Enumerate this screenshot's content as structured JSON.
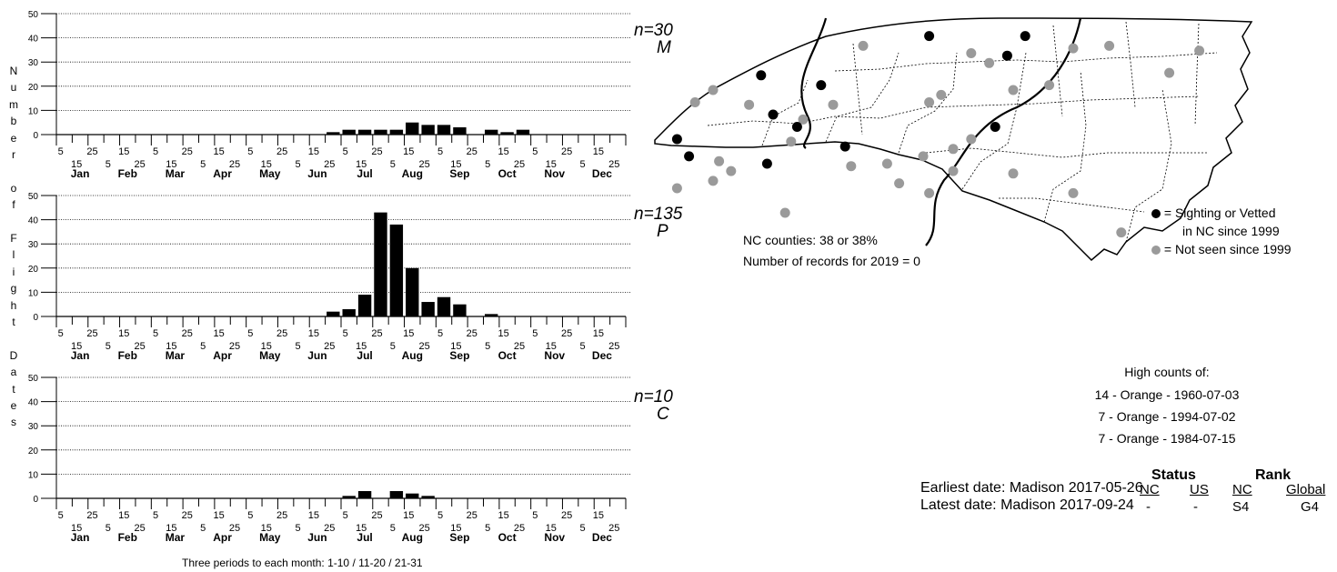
{
  "charts": [
    {
      "code": "M",
      "n_label": "n=30",
      "bar_values": [
        0,
        0,
        0,
        0,
        0,
        0,
        0,
        0,
        0,
        0,
        0,
        0,
        0,
        0,
        0,
        0,
        0,
        1,
        2,
        2,
        2,
        2,
        5,
        4,
        4,
        3,
        0,
        2,
        1,
        2,
        0,
        0,
        0,
        0,
        0,
        0
      ]
    },
    {
      "code": "P",
      "n_label": "n=135",
      "bar_values": [
        0,
        0,
        0,
        0,
        0,
        0,
        0,
        0,
        0,
        0,
        0,
        0,
        0,
        0,
        0,
        0,
        0,
        2,
        3,
        9,
        43,
        38,
        20,
        6,
        8,
        5,
        0,
        1,
        0,
        0,
        0,
        0,
        0,
        0,
        0,
        0
      ]
    },
    {
      "code": "C",
      "n_label": "n=10",
      "bar_values": [
        0,
        0,
        0,
        0,
        0,
        0,
        0,
        0,
        0,
        0,
        0,
        0,
        0,
        0,
        0,
        0,
        0,
        0,
        1,
        3,
        0,
        3,
        2,
        1,
        0,
        0,
        0,
        0,
        0,
        0,
        0,
        0,
        0,
        0,
        0,
        0
      ]
    }
  ],
  "chart_data": {
    "type": "bar",
    "y_ticks": [
      "0",
      "10",
      "20",
      "30",
      "40",
      "50"
    ],
    "ylim": [
      0,
      50
    ],
    "tick_labels_top": [
      "5",
      "25",
      "15",
      "5",
      "25",
      "15",
      "5",
      "25",
      "15",
      "5",
      "25",
      "15",
      "5",
      "25",
      "15",
      "5",
      "25",
      "15"
    ],
    "tick_labels_bottom": [
      "15",
      "5",
      "25",
      "15",
      "5",
      "25",
      "15",
      "5",
      "25",
      "15",
      "5",
      "25",
      "15",
      "5",
      "25",
      "15",
      "5",
      "25"
    ],
    "months": [
      "Jan",
      "Feb",
      "Mar",
      "Apr",
      "May",
      "Jun",
      "Jul",
      "Aug",
      "Sep",
      "Oct",
      "Nov",
      "Dec"
    ],
    "ylabel_chars": [
      "N",
      "u",
      "m",
      "b",
      "e",
      "r",
      "",
      "o",
      "f",
      "",
      "F",
      "l",
      "i",
      "g",
      "h",
      "t",
      "",
      "D",
      "a",
      "t",
      "e",
      "s"
    ],
    "xlabel": "Three periods to each month: 1-10 / 11-20 / 21-31"
  },
  "map": {
    "black_dots": [
      [
        0.18,
        0.24
      ],
      [
        0.46,
        0.08
      ],
      [
        0.62,
        0.08
      ],
      [
        0.59,
        0.16
      ],
      [
        0.28,
        0.28
      ],
      [
        0.57,
        0.45
      ],
      [
        0.2,
        0.4
      ],
      [
        0.24,
        0.45
      ],
      [
        0.32,
        0.53
      ],
      [
        0.04,
        0.5
      ],
      [
        0.19,
        0.6
      ],
      [
        0.06,
        0.57
      ]
    ],
    "grey_dots": [
      [
        0.35,
        0.12
      ],
      [
        0.53,
        0.15
      ],
      [
        0.56,
        0.19
      ],
      [
        0.7,
        0.13
      ],
      [
        0.76,
        0.12
      ],
      [
        0.86,
        0.23
      ],
      [
        0.91,
        0.14
      ],
      [
        0.66,
        0.28
      ],
      [
        0.6,
        0.3
      ],
      [
        0.48,
        0.32
      ],
      [
        0.46,
        0.35
      ],
      [
        0.25,
        0.42
      ],
      [
        0.16,
        0.36
      ],
      [
        0.23,
        0.51
      ],
      [
        0.33,
        0.61
      ],
      [
        0.41,
        0.68
      ],
      [
        0.46,
        0.72
      ],
      [
        0.5,
        0.63
      ],
      [
        0.39,
        0.6
      ],
      [
        0.45,
        0.57
      ],
      [
        0.5,
        0.54
      ],
      [
        0.53,
        0.5
      ],
      [
        0.6,
        0.64
      ],
      [
        0.7,
        0.72
      ],
      [
        0.78,
        0.88
      ],
      [
        0.1,
        0.67
      ],
      [
        0.13,
        0.63
      ],
      [
        0.04,
        0.7
      ],
      [
        0.22,
        0.8
      ],
      [
        0.11,
        0.59
      ],
      [
        0.1,
        0.3
      ],
      [
        0.07,
        0.35
      ],
      [
        0.3,
        0.36
      ]
    ]
  },
  "legend": {
    "black_line1": "= Sighting or Vetted",
    "black_line2": "in NC since 1999",
    "grey_line": "= Not seen since 1999"
  },
  "stats": {
    "counties": "NC counties: 38 or 38%",
    "records": "Number of records for 2019 = 0"
  },
  "high_counts": {
    "title": "High counts of:",
    "items": [
      "14 - Orange - 1960-07-03",
      "7 - Orange - 1994-07-02",
      "7 - Orange - 1984-07-15"
    ]
  },
  "dates": {
    "earliest": "Earliest date: Madison  2017-05-26",
    "latest": "Latest date: Madison  2017-09-24"
  },
  "status_rank": {
    "status_title": "Status",
    "rank_title": "Rank",
    "nc": "NC",
    "us": "US",
    "nc2": "NC",
    "global": "Global",
    "nc_val": "-",
    "us_val": "-",
    "s_rank": "S4",
    "g_rank": "G4"
  },
  "colors": {
    "black": "#000000",
    "grey": "#9a9a9a"
  }
}
